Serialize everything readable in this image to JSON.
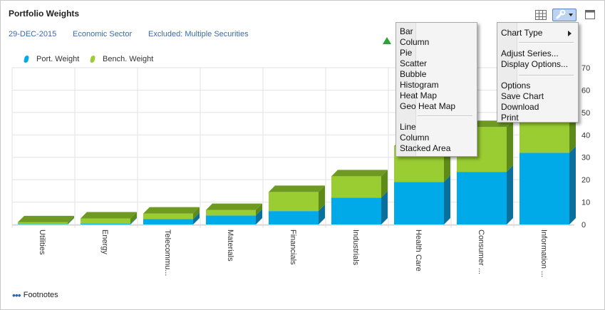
{
  "header": {
    "title": "Portfolio Weights",
    "date": "29-DEC-2015",
    "grouping": "Economic Sector",
    "exclusion": "Excluded: Multiple Securities"
  },
  "legend": {
    "items": [
      {
        "label": "Port. Weight",
        "color": "#00a9e8"
      },
      {
        "label": "Bench. Weight",
        "color": "#9acd32"
      }
    ]
  },
  "toolbar": {
    "icons": [
      "grid-icon",
      "wrench-icon",
      "chevron-down-icon",
      "window-icon"
    ]
  },
  "colors": {
    "port_front": "#00a9e8",
    "port_side": "#0a6f9a",
    "bench_front": "#9acd32",
    "bench_side": "#5e8a1a",
    "top": "#6f9a22"
  },
  "chart_data": {
    "type": "bar",
    "stacked": true,
    "categories": [
      "Utilities",
      "Energy",
      "Telecommu...",
      "Materials",
      "Financials",
      "Industrials",
      "Health Care",
      "Consumer ...",
      "Information ..."
    ],
    "series": [
      {
        "name": "Port. Weight",
        "values": [
          0.2,
          0.4,
          2.4,
          4,
          6,
          12,
          19,
          23.5,
          32
        ]
      },
      {
        "name": "Bench. Weight",
        "values": [
          0.8,
          2.3,
          2.5,
          2.5,
          8.5,
          9.5,
          16,
          20,
          23
        ]
      }
    ],
    "yticks": [
      0,
      10,
      20,
      30,
      40,
      50,
      60,
      70
    ],
    "ylim": [
      0,
      70
    ],
    "grid": true
  },
  "chart_type_menu": {
    "items": [
      "Bar",
      "Column",
      "Pie",
      "Scatter",
      "Bubble",
      "Histogram",
      "Heat Map",
      "Geo Heat Map"
    ],
    "items2": [
      "Line",
      "Column",
      "Stacked Area"
    ]
  },
  "options_menu": {
    "chart_type": "Chart Type",
    "group2": [
      "Adjust Series...",
      "Display Options..."
    ],
    "group3": [
      "Options",
      "Save Chart",
      "Download",
      "Print"
    ]
  },
  "footer": {
    "footnotes": "Footnotes"
  }
}
